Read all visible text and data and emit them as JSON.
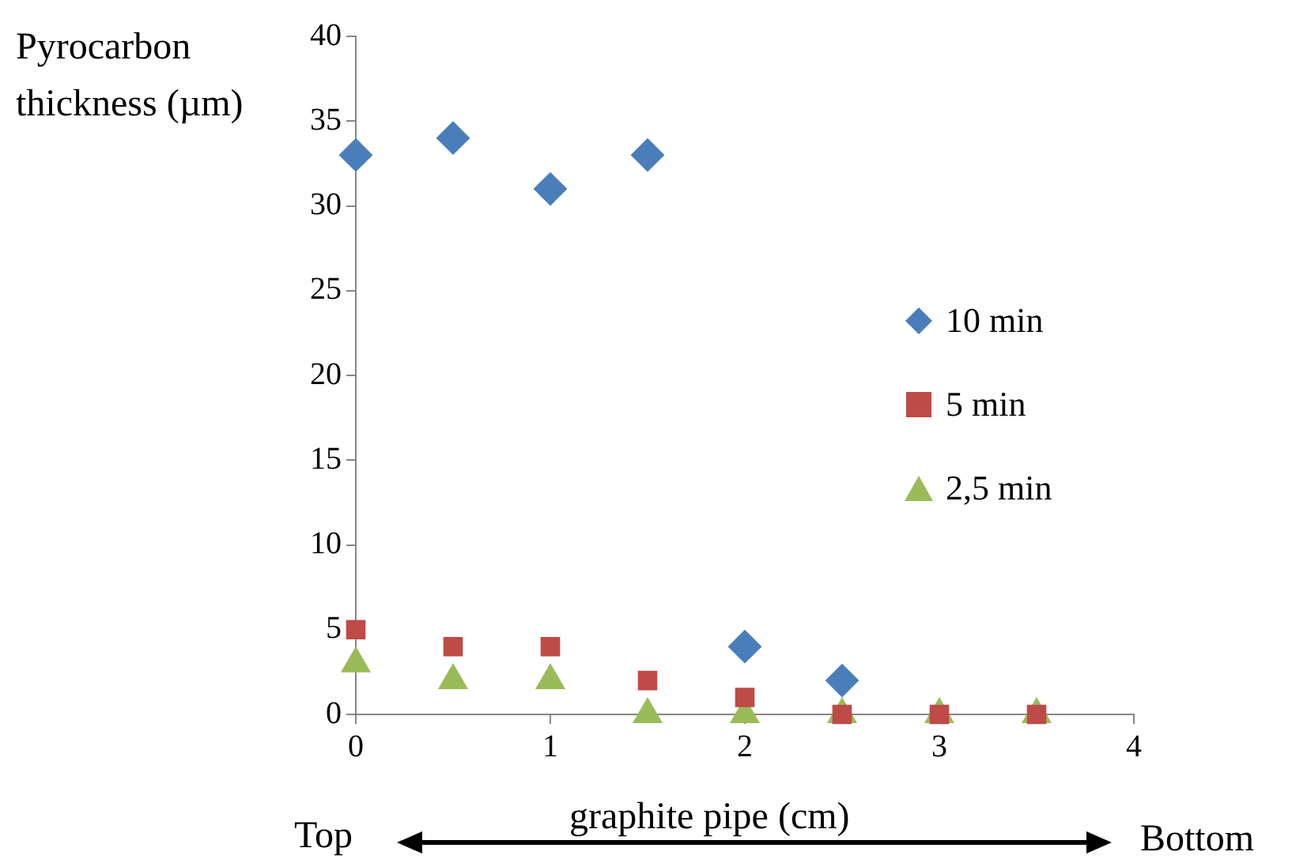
{
  "chart_data": {
    "type": "scatter",
    "ylabel": "Pyrocarbon thickness (µm)",
    "xlabel": "graphite pipe (cm)",
    "annotations": [
      "Top",
      "Bottom"
    ],
    "xlim": [
      0,
      4
    ],
    "xticks": [
      0,
      1,
      2,
      3,
      4
    ],
    "ylim": [
      0,
      40
    ],
    "yticks": [
      0,
      5,
      10,
      15,
      20,
      25,
      30,
      35,
      40
    ],
    "grid": false,
    "legend": "right",
    "series": [
      {
        "name": "10 min",
        "color": "#4a7ebb",
        "marker": "diamond",
        "x": [
          0,
          0.5,
          1,
          1.5,
          2,
          2.5
        ],
        "values": [
          33,
          34,
          31,
          33,
          4,
          2
        ]
      },
      {
        "name": "5 min",
        "color": "#be4b48",
        "marker": "square",
        "x": [
          0,
          0.5,
          1,
          1.5,
          2,
          2.5,
          3,
          3.5
        ],
        "values": [
          5,
          4,
          4,
          2,
          1,
          0,
          0,
          0
        ]
      },
      {
        "name": "2,5 min",
        "color": "#9bbb59",
        "marker": "triangle",
        "x": [
          0,
          0.5,
          1,
          1.5,
          2,
          2.5,
          3,
          3.5
        ],
        "values": [
          3,
          2,
          2,
          0,
          0,
          0,
          0,
          0
        ]
      }
    ]
  }
}
